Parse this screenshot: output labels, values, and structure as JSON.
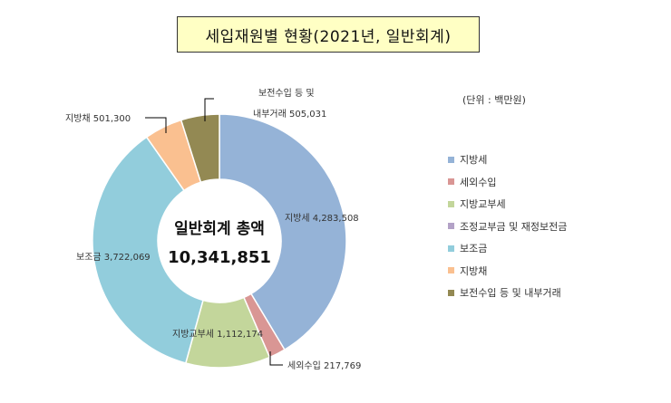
{
  "chart_data": {
    "type": "pie",
    "subtype": "donut",
    "title": "세입재원별 현황(2021년, 일반회계)",
    "unit_note": "(단위  : 백만원)",
    "center_label": "일반회계 총액",
    "center_total": "10,341,851",
    "slices": [
      {
        "name": "지방세",
        "value": 4283508,
        "value_label": "4,283,508",
        "color": "#95b3d7"
      },
      {
        "name": "세외수입",
        "value": 217769,
        "value_label": "217,769",
        "color": "#d99694"
      },
      {
        "name": "지방교부세",
        "value": 1112174,
        "value_label": "1,112,174",
        "color": "#c3d69b"
      },
      {
        "name": "조정교부금 및 재정보전금",
        "value": 0,
        "value_label": "",
        "color": "#b3a2c7"
      },
      {
        "name": "보조금",
        "value": 3722069,
        "value_label": "3,722,069",
        "color": "#92cddc"
      },
      {
        "name": "지방채",
        "value": 501300,
        "value_label": "501,300",
        "color": "#fac090"
      },
      {
        "name": "보전수입 등 및 내부거래",
        "value": 505031,
        "value_label": "505,031",
        "color": "#938953"
      }
    ],
    "data_labels": {
      "local_tax": "지방세  4,283,508",
      "non_tax": "세외수입  217,769",
      "grant": "지방교부세  1,112,174",
      "subsidy": "보조금  3,722,069",
      "bond": "지방채  501,300",
      "transfer_line1": "보전수입 등 및",
      "transfer_line2": "내부거래  505,031"
    },
    "legend_position": "right"
  }
}
